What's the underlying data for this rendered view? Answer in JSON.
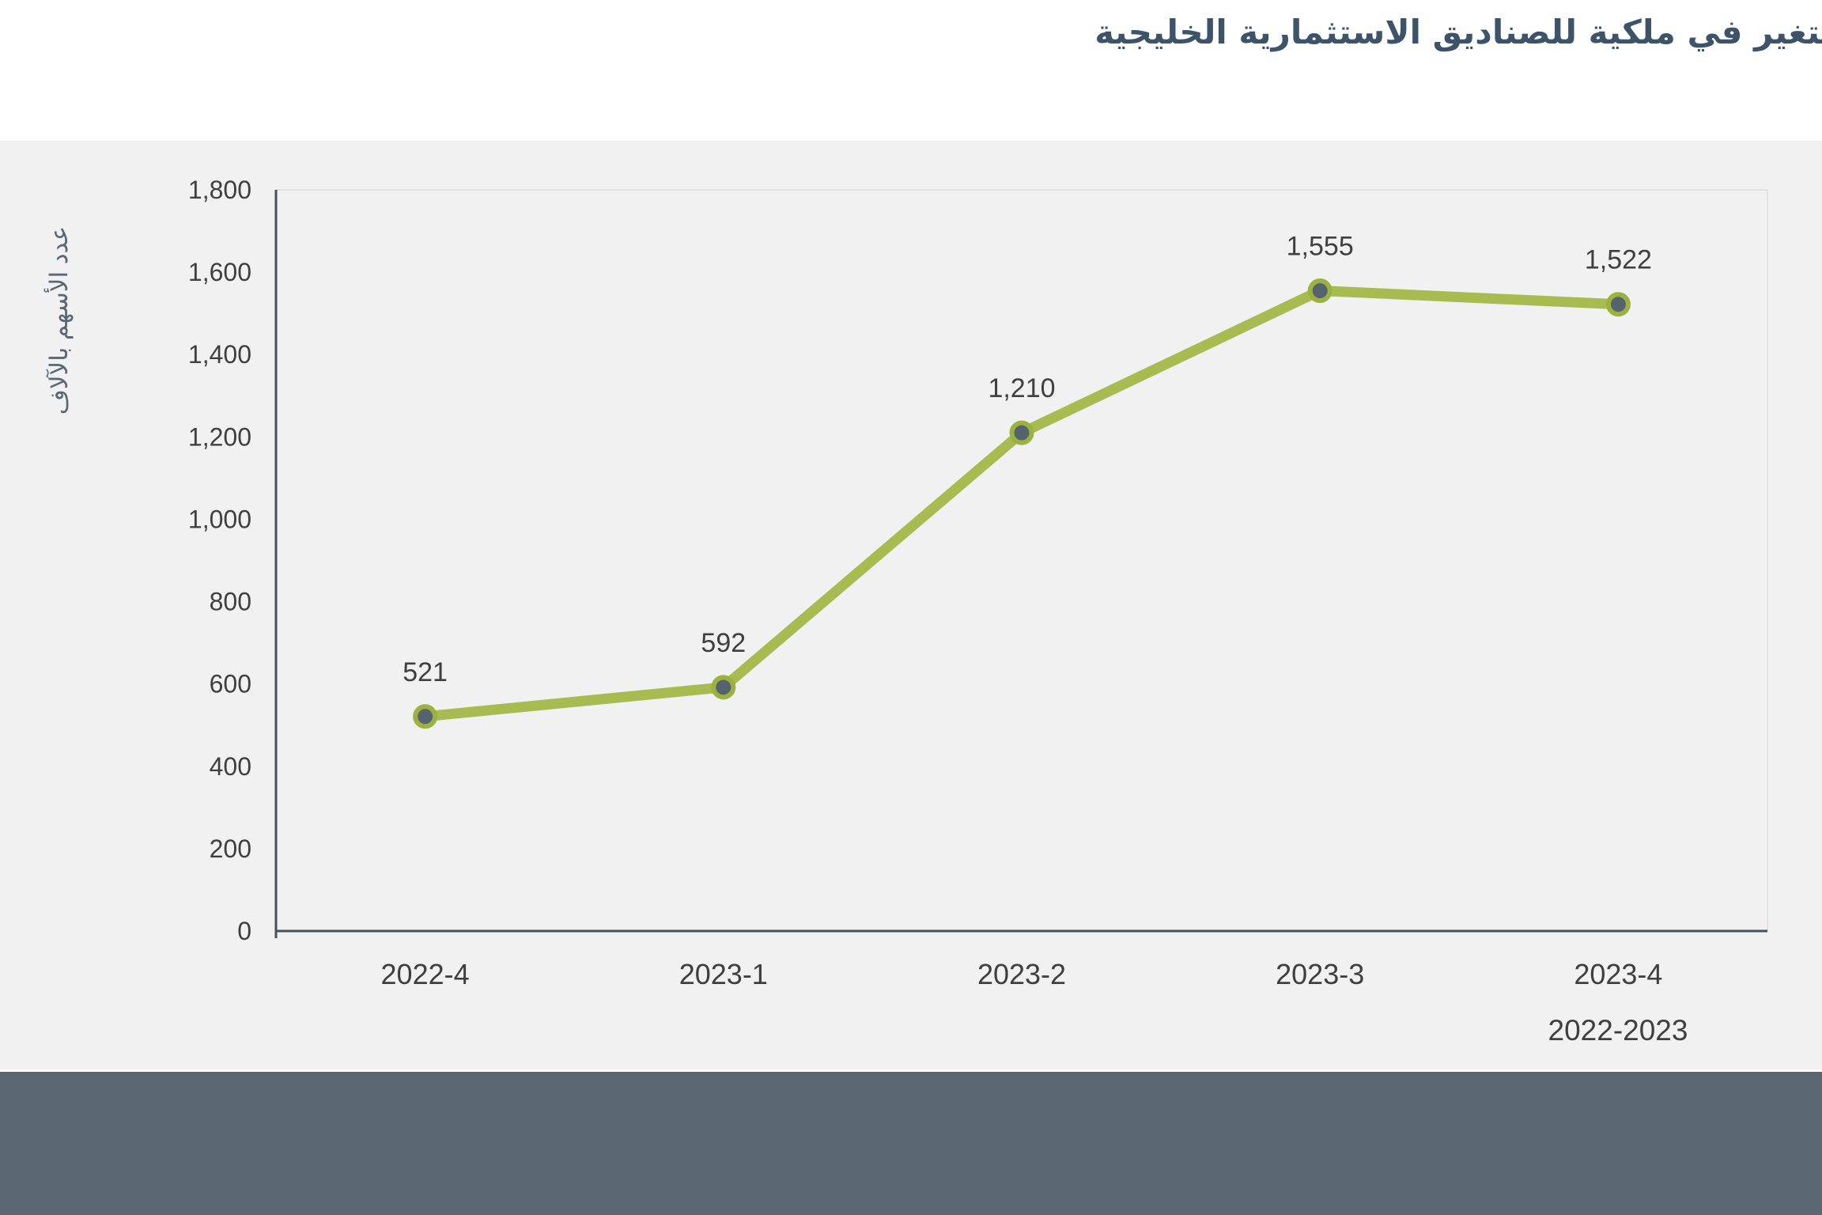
{
  "header": {
    "title": "لتغير في ملكية للصناديق الاستثمارية الخليجية"
  },
  "colors": {
    "title_text": "#3d5369",
    "band_background": "#f1f1f2",
    "footer_band": "#5a6672",
    "axis_line": "#46515c",
    "plot_border": "#e2e2e3",
    "tick_text": "#3f3f3f",
    "series_line": "#a8bb50",
    "marker_fill": "#56636f",
    "marker_ring": "#9cb23f",
    "y_axis_title_text": "#5a6875"
  },
  "chart_data": {
    "type": "line",
    "title": "لتغير في ملكية للصناديق الاستثمارية الخليجية",
    "categories": [
      "2022-4",
      "2023-1",
      "2023-2",
      "2023-3",
      "2023-4"
    ],
    "series": [
      {
        "name": "عدد الأسهم",
        "values": [
          521,
          592,
          1210,
          1555,
          1522
        ]
      }
    ],
    "data_labels": [
      "521",
      "592",
      "1,210",
      "1,555",
      "1,522"
    ],
    "xlabel": "2022-2023",
    "ylabel": "عدد الأسهم بالآلاف",
    "ylim": [
      0,
      1800
    ],
    "ytick_step": 200,
    "ytick_labels": [
      "0",
      "200",
      "400",
      "600",
      "800",
      "1,000",
      "1,200",
      "1,400",
      "1,600",
      "1,800"
    ],
    "grid": false,
    "legend": "none",
    "marker": "circle"
  }
}
